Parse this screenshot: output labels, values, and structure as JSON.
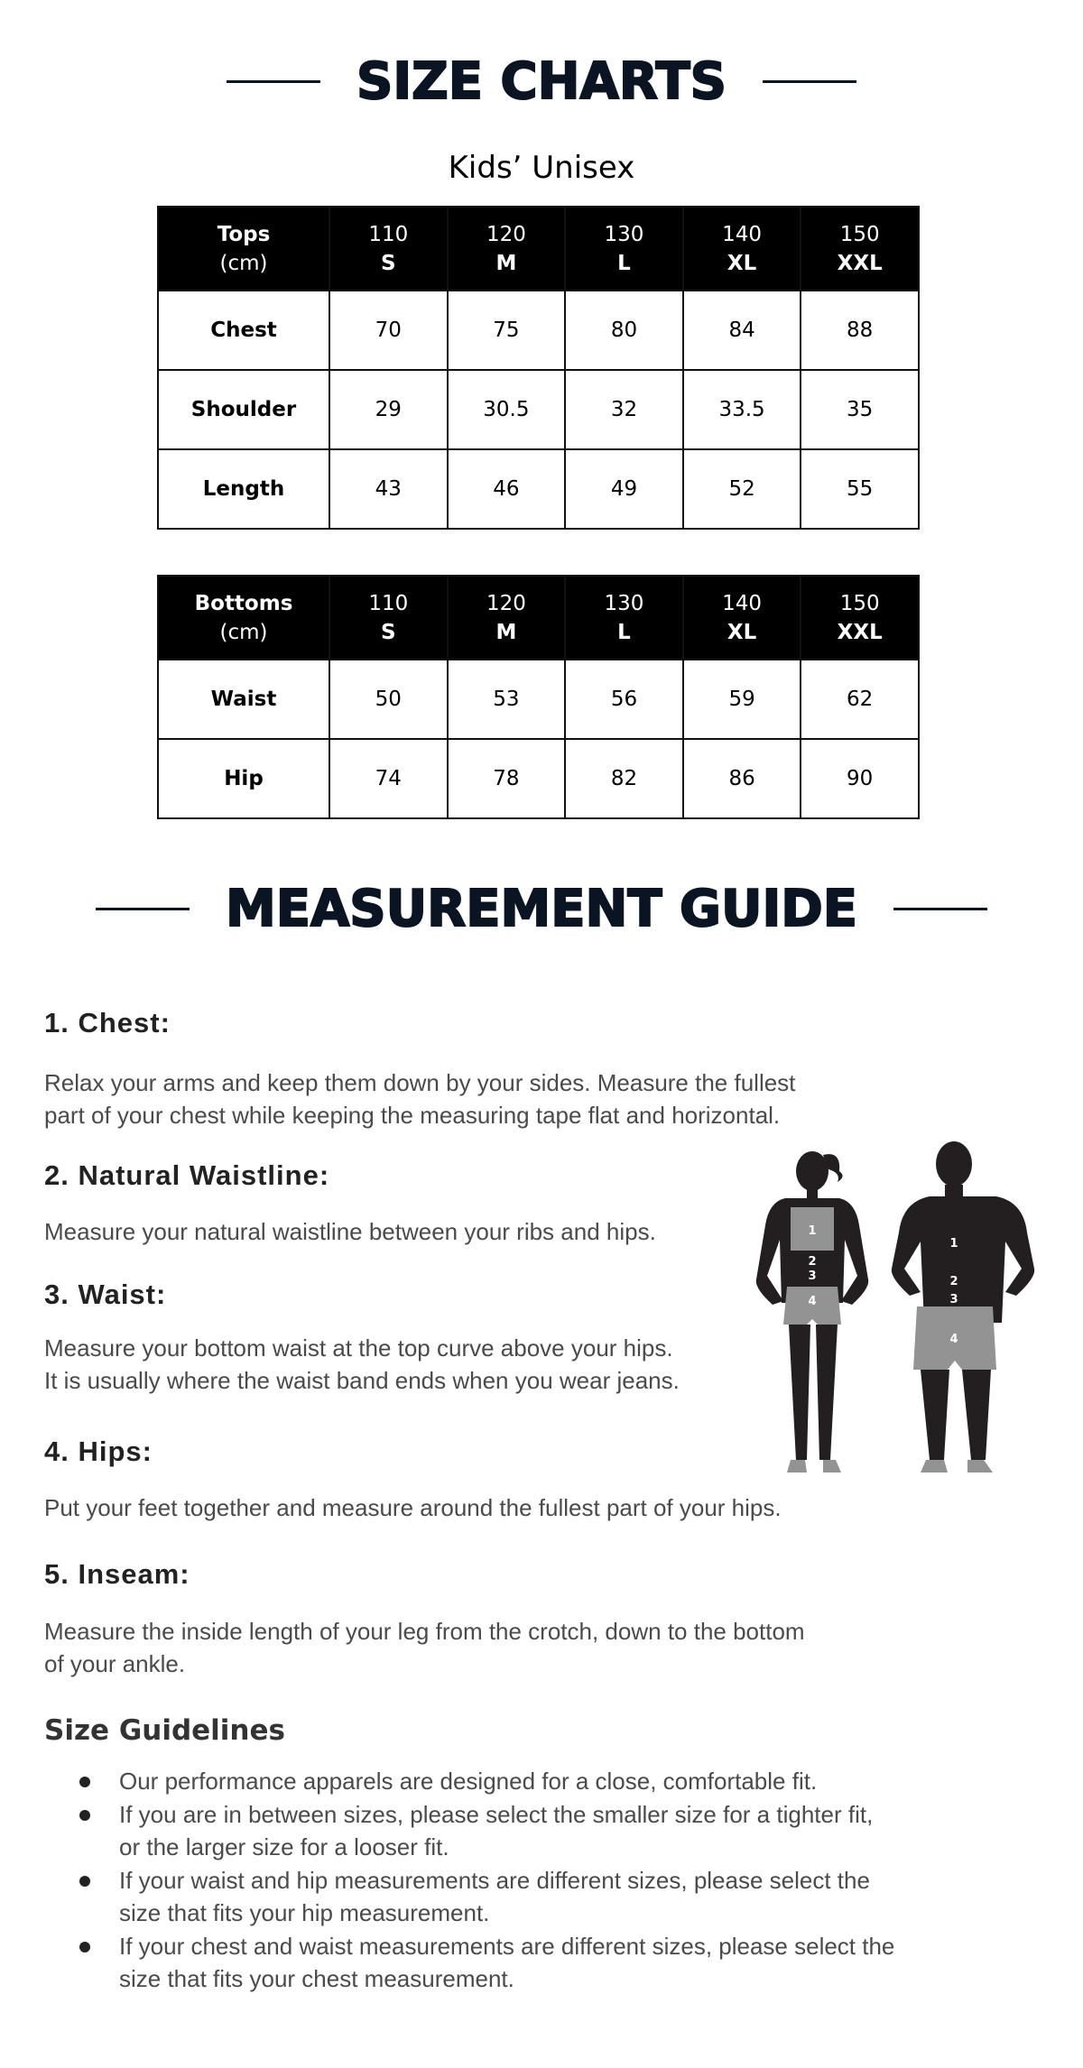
{
  "size_charts": {
    "title": "SIZE CHARTS",
    "subtitle": "Kids’ Unisex"
  },
  "tops": {
    "header_label": "Tops",
    "header_unit": "(cm)",
    "columns": [
      {
        "num": "110",
        "size": "S"
      },
      {
        "num": "120",
        "size": "M"
      },
      {
        "num": "130",
        "size": "L"
      },
      {
        "num": "140",
        "size": "XL"
      },
      {
        "num": "150",
        "size": "XXL"
      }
    ],
    "rows": [
      {
        "label": "Chest",
        "values": [
          "70",
          "75",
          "80",
          "84",
          "88"
        ]
      },
      {
        "label": "Shoulder",
        "values": [
          "29",
          "30.5",
          "32",
          "33.5",
          "35"
        ]
      },
      {
        "label": "Length",
        "values": [
          "43",
          "46",
          "49",
          "52",
          "55"
        ]
      }
    ]
  },
  "bottoms": {
    "header_label": "Bottoms",
    "header_unit": "(cm)",
    "columns": [
      {
        "num": "110",
        "size": "S"
      },
      {
        "num": "120",
        "size": "M"
      },
      {
        "num": "130",
        "size": "L"
      },
      {
        "num": "140",
        "size": "XL"
      },
      {
        "num": "150",
        "size": "XXL"
      }
    ],
    "rows": [
      {
        "label": "Waist",
        "values": [
          "50",
          "53",
          "56",
          "59",
          "62"
        ]
      },
      {
        "label": "Hip",
        "values": [
          "74",
          "78",
          "82",
          "86",
          "90"
        ]
      }
    ]
  },
  "guide": {
    "title": "MEASUREMENT GUIDE",
    "items": [
      {
        "heading": "1. Chest:",
        "lines": [
          "Relax your arms and keep them down by your sides. Measure the fullest",
          "part of your chest while keeping the measuring tape flat and horizontal."
        ]
      },
      {
        "heading": "2. Natural Waistline:",
        "lines": [
          "Measure your natural waistline between your ribs and hips."
        ]
      },
      {
        "heading": "3. Waist:",
        "lines": [
          "Measure your bottom waist at the top curve above your hips.",
          "It is usually where the waist band ends when you wear jeans."
        ]
      },
      {
        "heading": "4. Hips:",
        "lines": [
          "Put your feet together and measure around the fullest part of your hips."
        ]
      },
      {
        "heading": "5. Inseam:",
        "lines": [
          "Measure the inside length of your leg from the crotch, down to the bottom",
          "of your ankle."
        ]
      }
    ],
    "figure_labels": [
      "1",
      "2",
      "3",
      "4"
    ]
  },
  "guidelines": {
    "title": "Size Guidelines",
    "items": [
      [
        "Our performance apparels are designed for a close, comfortable fit."
      ],
      [
        "If you are in between sizes, please select the smaller size for a tighter fit,",
        "or the larger size for a looser fit."
      ],
      [
        "If your waist and hip measurements are different sizes, please select the",
        "size that fits your hip measurement."
      ],
      [
        "If your chest and waist measurements are different sizes, please select the",
        "size that fits your chest measurement."
      ]
    ]
  },
  "colors": {
    "heading": "#0b1422",
    "table_header": "#000000",
    "body_text": "#4a4a4a",
    "figure_dark": "#231f20",
    "figure_gray": "#939393"
  }
}
